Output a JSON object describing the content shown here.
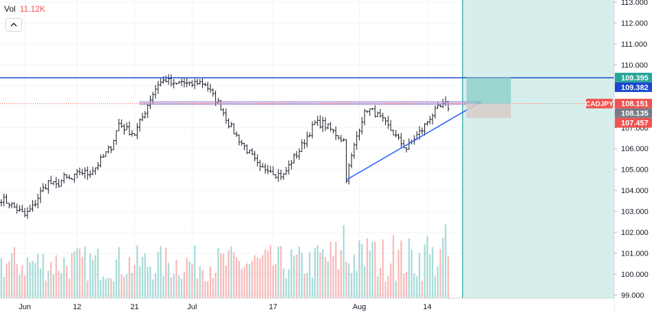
{
  "volume_legend": {
    "label": "Vol",
    "value": "11.12K"
  },
  "colors": {
    "up": "#26a69a",
    "down": "#ef5350",
    "bar": "#131722",
    "horizontal_line": "#1848cc",
    "trendline": "#2962ff",
    "zone_fill": "#b39ddb",
    "target_zone": "#80cbc4",
    "stop_zone": "#d7ccc8",
    "projection_area": "#d6efec",
    "grid": "#f0f3fa"
  },
  "chart_data": {
    "type": "ohlc",
    "symbol": "CADJPY",
    "y_ticks": [
      "113.000",
      "112.000",
      "111.000",
      "110.000",
      "109.000",
      "108.000",
      "107.000",
      "106.000",
      "105.000",
      "104.000",
      "103.000",
      "102.000",
      "101.000",
      "100.000",
      "99.000"
    ],
    "ylim": [
      98.85,
      113.1
    ],
    "x_ticks": [
      {
        "label": "Jun",
        "bar": 9
      },
      {
        "label": "12",
        "bar": 29
      },
      {
        "label": "21",
        "bar": 51
      },
      {
        "label": "Jul",
        "bar": 73
      },
      {
        "label": "17",
        "bar": 104
      },
      {
        "label": "Aug",
        "bar": 137
      },
      {
        "label": "14",
        "bar": 163
      }
    ],
    "bar_count": 172,
    "total_slots": 235,
    "price_path": [
      [
        0,
        103.6
      ],
      [
        3,
        103.4
      ],
      [
        6,
        103.1
      ],
      [
        9,
        102.8
      ],
      [
        12,
        103.2
      ],
      [
        15,
        103.9
      ],
      [
        18,
        104.4
      ],
      [
        21,
        104.2
      ],
      [
        24,
        104.6
      ],
      [
        27,
        104.5
      ],
      [
        30,
        104.9
      ],
      [
        33,
        104.8
      ],
      [
        36,
        105.1
      ],
      [
        39,
        105.6
      ],
      [
        42,
        106.1
      ],
      [
        45,
        107.2
      ],
      [
        48,
        106.9
      ],
      [
        51,
        106.7
      ],
      [
        54,
        107.5
      ],
      [
        57,
        108.4
      ],
      [
        60,
        109.1
      ],
      [
        63,
        109.3
      ],
      [
        66,
        109.0
      ],
      [
        69,
        109.2
      ],
      [
        72,
        109.0
      ],
      [
        75,
        109.2
      ],
      [
        78,
        109.1
      ],
      [
        81,
        108.5
      ],
      [
        84,
        108.0
      ],
      [
        87,
        107.2
      ],
      [
        90,
        106.6
      ],
      [
        93,
        106.1
      ],
      [
        96,
        105.6
      ],
      [
        99,
        105.0
      ],
      [
        102,
        105.1
      ],
      [
        105,
        104.8
      ],
      [
        108,
        104.7
      ],
      [
        111,
        105.4
      ],
      [
        114,
        105.9
      ],
      [
        117,
        106.6
      ],
      [
        120,
        107.2
      ],
      [
        123,
        107.2
      ],
      [
        126,
        106.9
      ],
      [
        129,
        106.6
      ],
      [
        131,
        106.4
      ],
      [
        132,
        104.6
      ],
      [
        134,
        105.6
      ],
      [
        136,
        106.6
      ],
      [
        138,
        107.4
      ],
      [
        140,
        107.9
      ],
      [
        143,
        107.7
      ],
      [
        146,
        107.3
      ],
      [
        149,
        106.9
      ],
      [
        152,
        106.4
      ],
      [
        155,
        106.0
      ],
      [
        158,
        106.5
      ],
      [
        161,
        106.9
      ],
      [
        164,
        107.5
      ],
      [
        167,
        107.9
      ],
      [
        170,
        108.1
      ],
      [
        171,
        108.0
      ]
    ],
    "volume": {
      "max": 12000,
      "spikes": [
        [
          131,
          11000
        ],
        [
          140,
          9000
        ],
        [
          143,
          8500
        ],
        [
          150,
          9500
        ],
        [
          163,
          9300
        ],
        [
          170,
          11120
        ]
      ],
      "last_value": 11120
    },
    "annotations": {
      "resistance_line": 109.382,
      "demand_zone": [
        108.1,
        108.25
      ],
      "trendline": {
        "from": [
          132,
          104.5
        ],
        "to": [
          183,
          108.2
        ]
      },
      "entry": 108.151,
      "target": 109.395,
      "stop": 107.457,
      "projection_start_bar": 177,
      "position_box": {
        "start_bar": 178,
        "end_bar": 195
      }
    },
    "price_labels": [
      {
        "text": "109.395",
        "color": "#26a69a"
      },
      {
        "text": "109.382",
        "color": "#1848cc"
      },
      {
        "text": "108.151",
        "color": "#ef5350"
      },
      {
        "text": "108.135",
        "color": "#787b86"
      },
      {
        "text": "107.457",
        "color": "#ef5350"
      }
    ],
    "price_label_values": [
      109.395,
      109.382,
      108.151,
      108.135,
      107.457
    ],
    "symbol_tag_color": "#ef5350"
  }
}
